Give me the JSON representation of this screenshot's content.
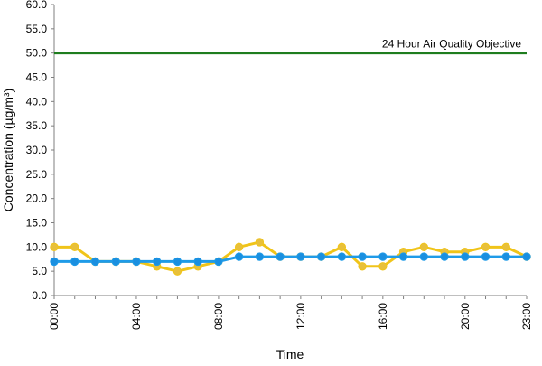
{
  "chart_data": {
    "type": "line",
    "xlabel": "Time",
    "ylabel": "Concentration (µg/m³)",
    "ylim": [
      0,
      60
    ],
    "yticks": [
      "0.0",
      "5.0",
      "10.0",
      "15.0",
      "20.0",
      "25.0",
      "30.0",
      "35.0",
      "40.0",
      "45.0",
      "50.0",
      "55.0",
      "60.0"
    ],
    "x": [
      "00:00",
      "01:00",
      "02:00",
      "03:00",
      "04:00",
      "05:00",
      "06:00",
      "07:00",
      "08:00",
      "09:00",
      "10:00",
      "11:00",
      "12:00",
      "13:00",
      "14:00",
      "15:00",
      "16:00",
      "17:00",
      "18:00",
      "19:00",
      "20:00",
      "21:00",
      "22:00",
      "23:00"
    ],
    "xtick_labels": [
      "00:00",
      "04:00",
      "08:00",
      "12:00",
      "16:00",
      "20:00",
      "23:00"
    ],
    "grid": false,
    "series": [
      {
        "color": "#f0c419",
        "marker_color": "#e8c03a",
        "values": [
          10,
          10,
          7,
          7,
          7,
          6,
          5,
          6,
          7,
          10,
          11,
          8,
          8,
          8,
          10,
          6,
          6,
          9,
          10,
          9,
          9,
          10,
          10,
          8
        ]
      },
      {
        "color": "#1f9be8",
        "marker_color": "#1a8fe0",
        "values": [
          7,
          7,
          7,
          7,
          7,
          7,
          7,
          7,
          7,
          8,
          8,
          8,
          8,
          8,
          8,
          8,
          8,
          8,
          8,
          8,
          8,
          8,
          8,
          8
        ]
      }
    ],
    "reference_line": {
      "value": 50,
      "label": "24 Hour Air Quality Objective",
      "color": "#1e7d1e"
    }
  }
}
